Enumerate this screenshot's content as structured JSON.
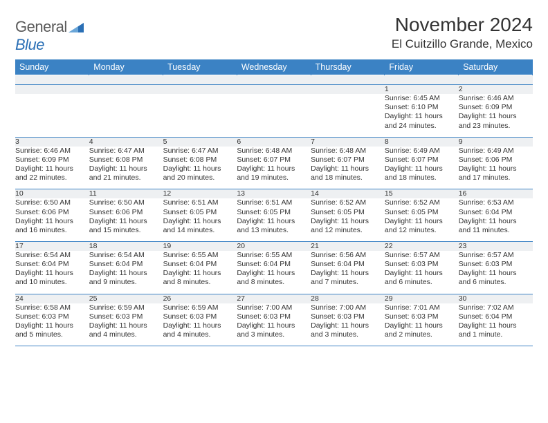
{
  "logo": {
    "word1": "General",
    "word2": "Blue"
  },
  "title": "November 2024",
  "location": "El Cuitzillo Grande, Mexico",
  "colors": {
    "header_bg": "#3b82c4",
    "header_text": "#ffffff",
    "daynum_bg": "#eef0f2",
    "rule": "#3b82c4",
    "text": "#333333",
    "logo_gray": "#5a5a5a",
    "logo_blue": "#2a6fb5"
  },
  "fonts": {
    "title_size_pt": 21,
    "location_size_pt": 13,
    "weekday_size_pt": 9.5,
    "daynum_size_pt": 9,
    "cell_size_pt": 8
  },
  "weekdays": [
    "Sunday",
    "Monday",
    "Tuesday",
    "Wednesday",
    "Thursday",
    "Friday",
    "Saturday"
  ],
  "weeks": [
    [
      null,
      null,
      null,
      null,
      null,
      {
        "n": "1",
        "sunrise": "Sunrise: 6:45 AM",
        "sunset": "Sunset: 6:10 PM",
        "day1": "Daylight: 11 hours",
        "day2": "and 24 minutes."
      },
      {
        "n": "2",
        "sunrise": "Sunrise: 6:46 AM",
        "sunset": "Sunset: 6:09 PM",
        "day1": "Daylight: 11 hours",
        "day2": "and 23 minutes."
      }
    ],
    [
      {
        "n": "3",
        "sunrise": "Sunrise: 6:46 AM",
        "sunset": "Sunset: 6:09 PM",
        "day1": "Daylight: 11 hours",
        "day2": "and 22 minutes."
      },
      {
        "n": "4",
        "sunrise": "Sunrise: 6:47 AM",
        "sunset": "Sunset: 6:08 PM",
        "day1": "Daylight: 11 hours",
        "day2": "and 21 minutes."
      },
      {
        "n": "5",
        "sunrise": "Sunrise: 6:47 AM",
        "sunset": "Sunset: 6:08 PM",
        "day1": "Daylight: 11 hours",
        "day2": "and 20 minutes."
      },
      {
        "n": "6",
        "sunrise": "Sunrise: 6:48 AM",
        "sunset": "Sunset: 6:07 PM",
        "day1": "Daylight: 11 hours",
        "day2": "and 19 minutes."
      },
      {
        "n": "7",
        "sunrise": "Sunrise: 6:48 AM",
        "sunset": "Sunset: 6:07 PM",
        "day1": "Daylight: 11 hours",
        "day2": "and 18 minutes."
      },
      {
        "n": "8",
        "sunrise": "Sunrise: 6:49 AM",
        "sunset": "Sunset: 6:07 PM",
        "day1": "Daylight: 11 hours",
        "day2": "and 18 minutes."
      },
      {
        "n": "9",
        "sunrise": "Sunrise: 6:49 AM",
        "sunset": "Sunset: 6:06 PM",
        "day1": "Daylight: 11 hours",
        "day2": "and 17 minutes."
      }
    ],
    [
      {
        "n": "10",
        "sunrise": "Sunrise: 6:50 AM",
        "sunset": "Sunset: 6:06 PM",
        "day1": "Daylight: 11 hours",
        "day2": "and 16 minutes."
      },
      {
        "n": "11",
        "sunrise": "Sunrise: 6:50 AM",
        "sunset": "Sunset: 6:06 PM",
        "day1": "Daylight: 11 hours",
        "day2": "and 15 minutes."
      },
      {
        "n": "12",
        "sunrise": "Sunrise: 6:51 AM",
        "sunset": "Sunset: 6:05 PM",
        "day1": "Daylight: 11 hours",
        "day2": "and 14 minutes."
      },
      {
        "n": "13",
        "sunrise": "Sunrise: 6:51 AM",
        "sunset": "Sunset: 6:05 PM",
        "day1": "Daylight: 11 hours",
        "day2": "and 13 minutes."
      },
      {
        "n": "14",
        "sunrise": "Sunrise: 6:52 AM",
        "sunset": "Sunset: 6:05 PM",
        "day1": "Daylight: 11 hours",
        "day2": "and 12 minutes."
      },
      {
        "n": "15",
        "sunrise": "Sunrise: 6:52 AM",
        "sunset": "Sunset: 6:05 PM",
        "day1": "Daylight: 11 hours",
        "day2": "and 12 minutes."
      },
      {
        "n": "16",
        "sunrise": "Sunrise: 6:53 AM",
        "sunset": "Sunset: 6:04 PM",
        "day1": "Daylight: 11 hours",
        "day2": "and 11 minutes."
      }
    ],
    [
      {
        "n": "17",
        "sunrise": "Sunrise: 6:54 AM",
        "sunset": "Sunset: 6:04 PM",
        "day1": "Daylight: 11 hours",
        "day2": "and 10 minutes."
      },
      {
        "n": "18",
        "sunrise": "Sunrise: 6:54 AM",
        "sunset": "Sunset: 6:04 PM",
        "day1": "Daylight: 11 hours",
        "day2": "and 9 minutes."
      },
      {
        "n": "19",
        "sunrise": "Sunrise: 6:55 AM",
        "sunset": "Sunset: 6:04 PM",
        "day1": "Daylight: 11 hours",
        "day2": "and 8 minutes."
      },
      {
        "n": "20",
        "sunrise": "Sunrise: 6:55 AM",
        "sunset": "Sunset: 6:04 PM",
        "day1": "Daylight: 11 hours",
        "day2": "and 8 minutes."
      },
      {
        "n": "21",
        "sunrise": "Sunrise: 6:56 AM",
        "sunset": "Sunset: 6:04 PM",
        "day1": "Daylight: 11 hours",
        "day2": "and 7 minutes."
      },
      {
        "n": "22",
        "sunrise": "Sunrise: 6:57 AM",
        "sunset": "Sunset: 6:03 PM",
        "day1": "Daylight: 11 hours",
        "day2": "and 6 minutes."
      },
      {
        "n": "23",
        "sunrise": "Sunrise: 6:57 AM",
        "sunset": "Sunset: 6:03 PM",
        "day1": "Daylight: 11 hours",
        "day2": "and 6 minutes."
      }
    ],
    [
      {
        "n": "24",
        "sunrise": "Sunrise: 6:58 AM",
        "sunset": "Sunset: 6:03 PM",
        "day1": "Daylight: 11 hours",
        "day2": "and 5 minutes."
      },
      {
        "n": "25",
        "sunrise": "Sunrise: 6:59 AM",
        "sunset": "Sunset: 6:03 PM",
        "day1": "Daylight: 11 hours",
        "day2": "and 4 minutes."
      },
      {
        "n": "26",
        "sunrise": "Sunrise: 6:59 AM",
        "sunset": "Sunset: 6:03 PM",
        "day1": "Daylight: 11 hours",
        "day2": "and 4 minutes."
      },
      {
        "n": "27",
        "sunrise": "Sunrise: 7:00 AM",
        "sunset": "Sunset: 6:03 PM",
        "day1": "Daylight: 11 hours",
        "day2": "and 3 minutes."
      },
      {
        "n": "28",
        "sunrise": "Sunrise: 7:00 AM",
        "sunset": "Sunset: 6:03 PM",
        "day1": "Daylight: 11 hours",
        "day2": "and 3 minutes."
      },
      {
        "n": "29",
        "sunrise": "Sunrise: 7:01 AM",
        "sunset": "Sunset: 6:03 PM",
        "day1": "Daylight: 11 hours",
        "day2": "and 2 minutes."
      },
      {
        "n": "30",
        "sunrise": "Sunrise: 7:02 AM",
        "sunset": "Sunset: 6:04 PM",
        "day1": "Daylight: 11 hours",
        "day2": "and 1 minute."
      }
    ]
  ]
}
